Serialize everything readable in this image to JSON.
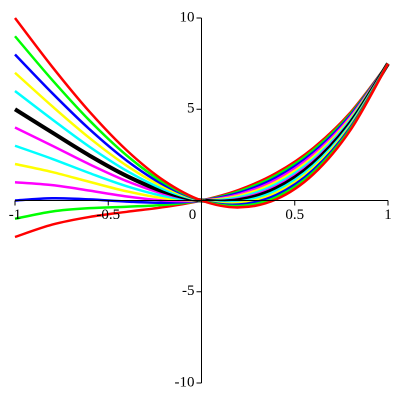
{
  "chart_data": {
    "type": "line",
    "x": [
      -1,
      -0.8,
      -0.6,
      -0.4,
      -0.2,
      0,
      0.2,
      0.4,
      0.6,
      0.8,
      1
    ],
    "series": [
      {
        "color": "#ff0000",
        "values": [
          -2,
          -1.32,
          -0.9,
          -0.62,
          -0.36,
          0,
          0.58,
          1.5,
          2.88,
          4.84,
          7.5
        ]
      },
      {
        "color": "#00ff00",
        "values": [
          -1,
          -0.6,
          -0.42,
          -0.34,
          -0.24,
          0,
          0.5,
          1.38,
          2.76,
          4.76,
          7.5
        ]
      },
      {
        "color": "#0000ff",
        "values": [
          0,
          0.12,
          0.06,
          -0.06,
          -0.12,
          0,
          0.42,
          1.26,
          2.64,
          4.68,
          7.5
        ]
      },
      {
        "color": "#ff00ff",
        "values": [
          1,
          0.84,
          0.54,
          0.22,
          0,
          0,
          0.34,
          1.14,
          2.52,
          4.6,
          7.5
        ]
      },
      {
        "color": "#ffff00",
        "values": [
          2,
          1.56,
          1.02,
          0.5,
          0.12,
          0,
          0.26,
          1.02,
          2.4,
          4.52,
          7.5
        ]
      },
      {
        "color": "#00ffff",
        "values": [
          3,
          2.28,
          1.5,
          0.78,
          0.24,
          0,
          0.18,
          0.9,
          2.28,
          4.44,
          7.5
        ]
      },
      {
        "color": "#ff00ff",
        "values": [
          4,
          3,
          1.98,
          1.06,
          0.36,
          0,
          0.1,
          0.78,
          2.16,
          4.36,
          7.5
        ]
      },
      {
        "color": "#000000",
        "values": [
          5,
          3.72,
          2.46,
          1.34,
          0.48,
          0,
          0.02,
          0.66,
          2.04,
          4.28,
          7.5
        ]
      },
      {
        "color": "#00ffff",
        "values": [
          6,
          4.44,
          2.94,
          1.62,
          0.6,
          0,
          -0.06,
          0.54,
          1.92,
          4.2,
          7.5
        ]
      },
      {
        "color": "#ffff00",
        "values": [
          7,
          5.16,
          3.42,
          1.9,
          0.72,
          0,
          -0.14,
          0.42,
          1.8,
          4.12,
          7.5
        ]
      },
      {
        "color": "#0000ff",
        "values": [
          8,
          5.88,
          3.9,
          2.18,
          0.84,
          0,
          -0.22,
          0.3,
          1.68,
          4.04,
          7.5
        ]
      },
      {
        "color": "#00ff00",
        "values": [
          9,
          6.6,
          4.38,
          2.46,
          0.96,
          0,
          -0.3,
          0.18,
          1.56,
          3.96,
          7.5
        ]
      },
      {
        "color": "#ff0000",
        "values": [
          10,
          7.32,
          4.86,
          2.74,
          1.08,
          0,
          -0.38,
          0.06,
          1.44,
          3.88,
          7.5
        ]
      }
    ],
    "xlim": [
      -1,
      1
    ],
    "ylim": [
      -10,
      10
    ],
    "xticks": [
      -1,
      -0.5,
      0,
      0.5,
      1
    ],
    "yticks": [
      -10,
      -5,
      5,
      10
    ]
  }
}
